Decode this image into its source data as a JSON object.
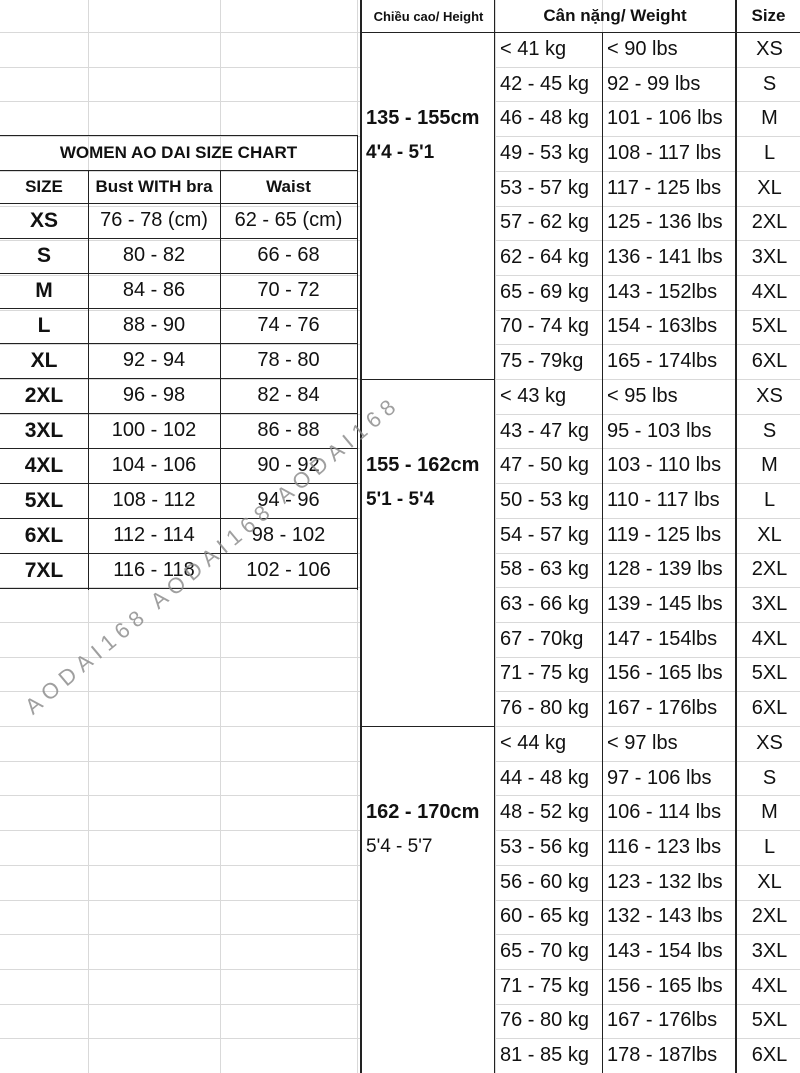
{
  "left_table": {
    "title": "WOMEN AO DAI SIZE CHART",
    "headers": [
      "SIZE",
      "Bust WITH bra",
      "Waist"
    ],
    "rows": [
      [
        "XS",
        "76 - 78 (cm)",
        "62 - 65 (cm)"
      ],
      [
        "S",
        "80 - 82",
        "66 - 68"
      ],
      [
        "M",
        "84 - 86",
        "70 - 72"
      ],
      [
        "L",
        "88 - 90",
        "74 - 76"
      ],
      [
        "XL",
        "92 - 94",
        "78 - 80"
      ],
      [
        "2XL",
        "96 - 98",
        "82 - 84"
      ],
      [
        "3XL",
        "100 - 102",
        "86 - 88"
      ],
      [
        "4XL",
        "104 - 106",
        "90 - 92"
      ],
      [
        "5XL",
        "108 - 112",
        "94 - 96"
      ],
      [
        "6XL",
        "112 - 114",
        "98 - 102"
      ],
      [
        "7XL",
        "116 - 118",
        "102 - 106"
      ]
    ]
  },
  "right_table": {
    "headers": [
      "Chiều cao/ Height",
      "Cân nặng/ Weight",
      "Size"
    ],
    "groups": [
      {
        "height_cm": "135 - 155cm",
        "height_ft": "4'4 - 5'1",
        "rows": [
          [
            "< 41 kg",
            "< 90 lbs",
            "XS"
          ],
          [
            "42 - 45 kg",
            "92 - 99 lbs",
            "S"
          ],
          [
            "46 - 48 kg",
            "101 - 106 lbs",
            "M"
          ],
          [
            "49 - 53 kg",
            "108 - 117 lbs",
            "L"
          ],
          [
            "53 - 57 kg",
            "117 - 125 lbs",
            "XL"
          ],
          [
            "57 - 62 kg",
            "125 - 136 lbs",
            "2XL"
          ],
          [
            "62 - 64 kg",
            "136 - 141 lbs",
            "3XL"
          ],
          [
            "65 - 69 kg",
            "143 - 152lbs",
            "4XL"
          ],
          [
            "70 - 74 kg",
            "154 - 163lbs",
            "5XL"
          ],
          [
            "75 - 79kg",
            "165 - 174lbs",
            "6XL"
          ]
        ]
      },
      {
        "height_cm": "155 - 162cm",
        "height_ft": "5'1 - 5'4",
        "rows": [
          [
            "< 43 kg",
            "< 95 lbs",
            "XS"
          ],
          [
            "43 - 47 kg",
            "95 - 103 lbs",
            "S"
          ],
          [
            "47 - 50 kg",
            "103 - 110 lbs",
            "M"
          ],
          [
            "50 - 53 kg",
            "110 - 117 lbs",
            "L"
          ],
          [
            "54 - 57 kg",
            "119 - 125 lbs",
            "XL"
          ],
          [
            "58 - 63 kg",
            "128 - 139 lbs",
            "2XL"
          ],
          [
            "63 - 66 kg",
            "139 - 145 lbs",
            "3XL"
          ],
          [
            "67 - 70kg",
            "147 - 154lbs",
            "4XL"
          ],
          [
            "71 - 75 kg",
            "156 - 165 lbs",
            "5XL"
          ],
          [
            "76 - 80 kg",
            "167 - 176lbs",
            "6XL"
          ]
        ]
      },
      {
        "height_cm": "162 - 170cm",
        "height_ft": "5'4 - 5'7",
        "rows": [
          [
            "< 44 kg",
            "< 97 lbs",
            "XS"
          ],
          [
            "44 - 48 kg",
            "97 - 106 lbs",
            "S"
          ],
          [
            "48 - 52 kg",
            "106 - 114 lbs",
            "M"
          ],
          [
            "53 - 56 kg",
            "116 - 123 lbs",
            "L"
          ],
          [
            "56 - 60 kg",
            "123 - 132 lbs",
            "XL"
          ],
          [
            "60 - 65 kg",
            "132 - 143 lbs",
            "2XL"
          ],
          [
            "65 - 70 kg",
            "143 - 154 lbs",
            "3XL"
          ],
          [
            "71 - 75 kg",
            "156 - 165 lbs",
            "4XL"
          ],
          [
            "76 - 80 kg",
            "167 - 176lbs",
            "5XL"
          ],
          [
            "81 - 85 kg",
            "178 - 187lbs",
            "6XL"
          ]
        ]
      }
    ]
  },
  "watermark": "AODAI168 AODAI168 AODAI168"
}
